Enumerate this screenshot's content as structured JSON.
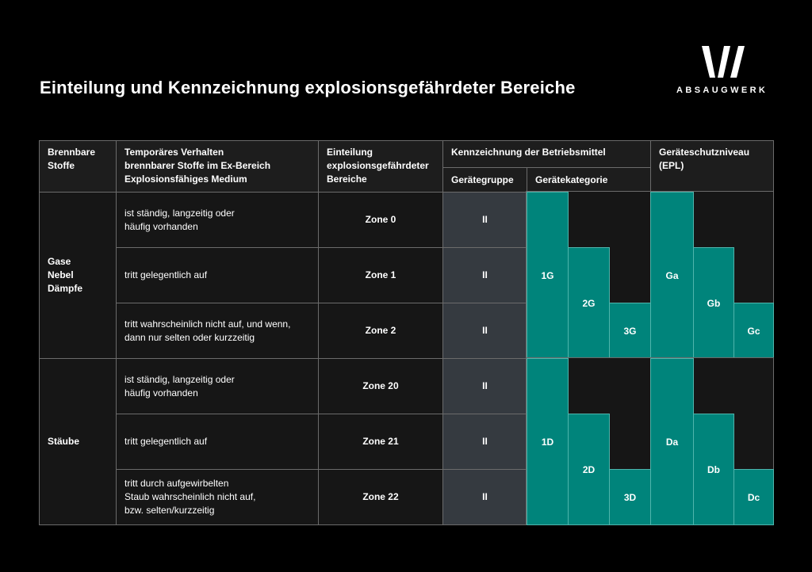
{
  "title": "Einteilung und Kennzeichnung explosionsgefährdeter Bereiche",
  "logo": {
    "text": "ABSAUGWERK"
  },
  "headers": {
    "stoffe": "Brennbare\nStoffe",
    "verhalten": "Temporäres Verhalten\nbrennbarer Stoffe im Ex-Bereich\nExplosionsfähiges Medium",
    "einteilung": "Einteilung\nexplosionsgefährdeter\nBereiche",
    "kennzeichnung": "Kennzeichnung der Betriebsmittel",
    "geraetegruppe": "Gerätegruppe",
    "geraetekategorie": "Gerätekategorie",
    "epl": "Geräteschutzniveau\n(EPL)"
  },
  "groups": [
    {
      "stoff": "Gase\nNebel\nDämpfe",
      "rows": [
        {
          "verhalten": "ist ständig, langzeitig oder\nhäufig vorhanden",
          "zone": "Zone 0",
          "gruppe": "II"
        },
        {
          "verhalten": "tritt gelegentlich auf",
          "zone": "Zone 1",
          "gruppe": "II"
        },
        {
          "verhalten": "tritt wahrscheinlich nicht auf, und wenn,\ndann nur selten oder kurzzeitig",
          "zone": "Zone 2",
          "gruppe": "II"
        }
      ],
      "kategorien": [
        "1G",
        "2G",
        "3G"
      ],
      "epl": [
        "Ga",
        "Gb",
        "Gc"
      ]
    },
    {
      "stoff": "Stäube",
      "rows": [
        {
          "verhalten": "ist ständig, langzeitig oder\nhäufig vorhanden",
          "zone": "Zone 20",
          "gruppe": "II"
        },
        {
          "verhalten": "tritt gelegentlich auf",
          "zone": "Zone 21",
          "gruppe": "II"
        },
        {
          "verhalten": "tritt durch aufgewirbelten\nStaub wahrscheinlich nicht auf,\nbzw. selten/kurzzeitig",
          "zone": "Zone 22",
          "gruppe": "II"
        }
      ],
      "kategorien": [
        "1D",
        "2D",
        "3D"
      ],
      "epl": [
        "Da",
        "Db",
        "Dc"
      ]
    }
  ],
  "colors": {
    "teal": "#00847b",
    "gruppe_bg": "#353a40",
    "background": "#000000"
  }
}
